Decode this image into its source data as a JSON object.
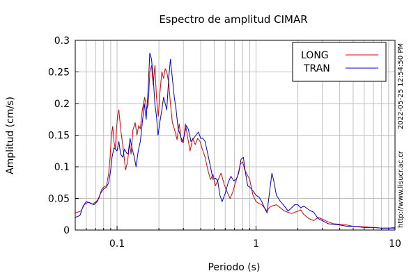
{
  "chart_data": {
    "type": "line",
    "title": "Espectro de amplitud CIMAR",
    "xlabel": "Periodo (s)",
    "ylabel": "Amplitud (cm/s)",
    "x_scale": "log",
    "xlim": [
      0.05,
      10
    ],
    "ylim": [
      0,
      0.3
    ],
    "x_ticks": [
      {
        "value": 0.1,
        "label": "0.1"
      },
      {
        "value": 1,
        "label": "1"
      },
      {
        "value": 10,
        "label": "10"
      }
    ],
    "y_ticks": [
      {
        "value": 0,
        "label": "0"
      },
      {
        "value": 0.05,
        "label": "0.05"
      },
      {
        "value": 0.1,
        "label": "0.1"
      },
      {
        "value": 0.15,
        "label": "0.15"
      },
      {
        "value": 0.2,
        "label": "0.2"
      },
      {
        "value": 0.25,
        "label": "0.25"
      },
      {
        "value": 0.3,
        "label": "0.3"
      }
    ],
    "grid": true,
    "legend_position": "top-right",
    "series": [
      {
        "name": "LONG",
        "color": "#dd0000",
        "points": [
          [
            0.05,
            0.027
          ],
          [
            0.055,
            0.03
          ],
          [
            0.058,
            0.04
          ],
          [
            0.062,
            0.044
          ],
          [
            0.066,
            0.041
          ],
          [
            0.07,
            0.044
          ],
          [
            0.074,
            0.05
          ],
          [
            0.077,
            0.063
          ],
          [
            0.08,
            0.068
          ],
          [
            0.084,
            0.07
          ],
          [
            0.087,
            0.09
          ],
          [
            0.089,
            0.115
          ],
          [
            0.091,
            0.15
          ],
          [
            0.093,
            0.164
          ],
          [
            0.095,
            0.14
          ],
          [
            0.097,
            0.128
          ],
          [
            0.099,
            0.16
          ],
          [
            0.101,
            0.182
          ],
          [
            0.103,
            0.19
          ],
          [
            0.106,
            0.16
          ],
          [
            0.109,
            0.14
          ],
          [
            0.112,
            0.118
          ],
          [
            0.115,
            0.095
          ],
          [
            0.119,
            0.108
          ],
          [
            0.123,
            0.137
          ],
          [
            0.126,
            0.12
          ],
          [
            0.13,
            0.158
          ],
          [
            0.135,
            0.17
          ],
          [
            0.139,
            0.15
          ],
          [
            0.143,
            0.165
          ],
          [
            0.147,
            0.16
          ],
          [
            0.152,
            0.19
          ],
          [
            0.158,
            0.21
          ],
          [
            0.163,
            0.19
          ],
          [
            0.168,
            0.2
          ],
          [
            0.172,
            0.25
          ],
          [
            0.177,
            0.26
          ],
          [
            0.182,
            0.23
          ],
          [
            0.187,
            0.26
          ],
          [
            0.192,
            0.21
          ],
          [
            0.198,
            0.18
          ],
          [
            0.204,
            0.22
          ],
          [
            0.21,
            0.25
          ],
          [
            0.216,
            0.24
          ],
          [
            0.222,
            0.255
          ],
          [
            0.228,
            0.25
          ],
          [
            0.235,
            0.233
          ],
          [
            0.242,
            0.2
          ],
          [
            0.25,
            0.17
          ],
          [
            0.26,
            0.158
          ],
          [
            0.27,
            0.143
          ],
          [
            0.28,
            0.168
          ],
          [
            0.29,
            0.14
          ],
          [
            0.3,
            0.138
          ],
          [
            0.31,
            0.168
          ],
          [
            0.32,
            0.15
          ],
          [
            0.335,
            0.125
          ],
          [
            0.35,
            0.145
          ],
          [
            0.365,
            0.135
          ],
          [
            0.38,
            0.145
          ],
          [
            0.395,
            0.14
          ],
          [
            0.41,
            0.128
          ],
          [
            0.43,
            0.115
          ],
          [
            0.45,
            0.095
          ],
          [
            0.47,
            0.08
          ],
          [
            0.49,
            0.088
          ],
          [
            0.51,
            0.07
          ],
          [
            0.53,
            0.078
          ],
          [
            0.56,
            0.09
          ],
          [
            0.59,
            0.072
          ],
          [
            0.62,
            0.06
          ],
          [
            0.65,
            0.05
          ],
          [
            0.68,
            0.06
          ],
          [
            0.71,
            0.075
          ],
          [
            0.74,
            0.087
          ],
          [
            0.77,
            0.104
          ],
          [
            0.8,
            0.108
          ],
          [
            0.83,
            0.095
          ],
          [
            0.86,
            0.088
          ],
          [
            0.9,
            0.08
          ],
          [
            0.95,
            0.055
          ],
          [
            1.0,
            0.045
          ],
          [
            1.05,
            0.042
          ],
          [
            1.1,
            0.04
          ],
          [
            1.15,
            0.035
          ],
          [
            1.2,
            0.03
          ],
          [
            1.25,
            0.036
          ],
          [
            1.3,
            0.038
          ],
          [
            1.4,
            0.04
          ],
          [
            1.5,
            0.035
          ],
          [
            1.6,
            0.03
          ],
          [
            1.7,
            0.028
          ],
          [
            1.8,
            0.026
          ],
          [
            1.9,
            0.028
          ],
          [
            2.0,
            0.03
          ],
          [
            2.1,
            0.032
          ],
          [
            2.2,
            0.025
          ],
          [
            2.4,
            0.018
          ],
          [
            2.6,
            0.015
          ],
          [
            2.8,
            0.02
          ],
          [
            3.0,
            0.017
          ],
          [
            3.3,
            0.013
          ],
          [
            3.6,
            0.01
          ],
          [
            4.0,
            0.009
          ],
          [
            4.5,
            0.008
          ],
          [
            5.0,
            0.006
          ],
          [
            6.0,
            0.005
          ],
          [
            7.0,
            0.004
          ],
          [
            8.0,
            0.003
          ],
          [
            9.0,
            0.003
          ],
          [
            10.0,
            0.004
          ]
        ]
      },
      {
        "name": "TRAN",
        "color": "#0000cc",
        "points": [
          [
            0.05,
            0.02
          ],
          [
            0.054,
            0.023
          ],
          [
            0.057,
            0.038
          ],
          [
            0.06,
            0.045
          ],
          [
            0.064,
            0.043
          ],
          [
            0.068,
            0.04
          ],
          [
            0.072,
            0.045
          ],
          [
            0.076,
            0.058
          ],
          [
            0.08,
            0.065
          ],
          [
            0.084,
            0.068
          ],
          [
            0.087,
            0.075
          ],
          [
            0.09,
            0.095
          ],
          [
            0.092,
            0.115
          ],
          [
            0.095,
            0.13
          ],
          [
            0.097,
            0.128
          ],
          [
            0.1,
            0.125
          ],
          [
            0.103,
            0.14
          ],
          [
            0.106,
            0.12
          ],
          [
            0.11,
            0.115
          ],
          [
            0.113,
            0.128
          ],
          [
            0.117,
            0.122
          ],
          [
            0.12,
            0.12
          ],
          [
            0.124,
            0.145
          ],
          [
            0.128,
            0.13
          ],
          [
            0.133,
            0.115
          ],
          [
            0.137,
            0.1
          ],
          [
            0.142,
            0.125
          ],
          [
            0.147,
            0.14
          ],
          [
            0.152,
            0.17
          ],
          [
            0.157,
            0.2
          ],
          [
            0.162,
            0.175
          ],
          [
            0.167,
            0.22
          ],
          [
            0.172,
            0.28
          ],
          [
            0.177,
            0.27
          ],
          [
            0.182,
            0.24
          ],
          [
            0.187,
            0.2
          ],
          [
            0.192,
            0.18
          ],
          [
            0.197,
            0.15
          ],
          [
            0.203,
            0.17
          ],
          [
            0.21,
            0.19
          ],
          [
            0.216,
            0.21
          ],
          [
            0.222,
            0.2
          ],
          [
            0.228,
            0.19
          ],
          [
            0.235,
            0.24
          ],
          [
            0.242,
            0.27
          ],
          [
            0.25,
            0.24
          ],
          [
            0.258,
            0.21
          ],
          [
            0.266,
            0.19
          ],
          [
            0.275,
            0.16
          ],
          [
            0.285,
            0.15
          ],
          [
            0.295,
            0.14
          ],
          [
            0.305,
            0.15
          ],
          [
            0.315,
            0.165
          ],
          [
            0.325,
            0.16
          ],
          [
            0.34,
            0.14
          ],
          [
            0.355,
            0.145
          ],
          [
            0.37,
            0.15
          ],
          [
            0.385,
            0.155
          ],
          [
            0.4,
            0.145
          ],
          [
            0.415,
            0.145
          ],
          [
            0.43,
            0.14
          ],
          [
            0.45,
            0.12
          ],
          [
            0.47,
            0.1
          ],
          [
            0.49,
            0.08
          ],
          [
            0.51,
            0.082
          ],
          [
            0.53,
            0.078
          ],
          [
            0.55,
            0.055
          ],
          [
            0.57,
            0.045
          ],
          [
            0.6,
            0.058
          ],
          [
            0.63,
            0.075
          ],
          [
            0.66,
            0.085
          ],
          [
            0.69,
            0.078
          ],
          [
            0.72,
            0.08
          ],
          [
            0.75,
            0.09
          ],
          [
            0.78,
            0.112
          ],
          [
            0.81,
            0.115
          ],
          [
            0.84,
            0.09
          ],
          [
            0.87,
            0.07
          ],
          [
            0.9,
            0.068
          ],
          [
            0.95,
            0.062
          ],
          [
            1.0,
            0.055
          ],
          [
            1.05,
            0.052
          ],
          [
            1.1,
            0.045
          ],
          [
            1.15,
            0.035
          ],
          [
            1.2,
            0.027
          ],
          [
            1.25,
            0.06
          ],
          [
            1.3,
            0.09
          ],
          [
            1.35,
            0.075
          ],
          [
            1.4,
            0.055
          ],
          [
            1.5,
            0.045
          ],
          [
            1.6,
            0.038
          ],
          [
            1.7,
            0.03
          ],
          [
            1.8,
            0.035
          ],
          [
            1.9,
            0.04
          ],
          [
            2.0,
            0.04
          ],
          [
            2.1,
            0.035
          ],
          [
            2.2,
            0.038
          ],
          [
            2.4,
            0.032
          ],
          [
            2.6,
            0.028
          ],
          [
            2.8,
            0.018
          ],
          [
            3.0,
            0.015
          ],
          [
            3.3,
            0.01
          ],
          [
            3.6,
            0.009
          ],
          [
            4.0,
            0.008
          ],
          [
            4.5,
            0.006
          ],
          [
            5.0,
            0.006
          ],
          [
            6.0,
            0.004
          ],
          [
            7.0,
            0.004
          ],
          [
            8.0,
            0.003
          ],
          [
            9.0,
            0.003
          ],
          [
            10.0,
            0.003
          ]
        ]
      }
    ]
  },
  "side_text": {
    "timestamp": "2022-05-25 12:54:50 PM",
    "url": "http://www.lisucr.ac.cr"
  }
}
